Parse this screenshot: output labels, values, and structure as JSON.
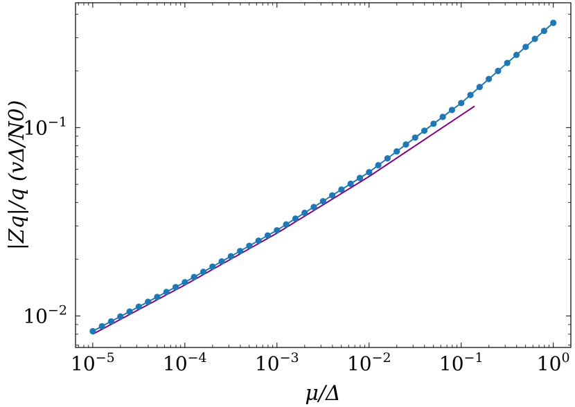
{
  "chart_data": {
    "type": "line",
    "xscale": "log",
    "yscale": "log",
    "xlim": [
      6.5e-06,
      1.55
    ],
    "ylim": [
      0.0068,
      0.46
    ],
    "xlabel": "μ/Δ",
    "ylabel": "|Zq|/q  (vΔ/N0)",
    "x_ticks": [
      {
        "value": 1e-05,
        "base": "10",
        "exp": "−5"
      },
      {
        "value": 0.0001,
        "base": "10",
        "exp": "−4"
      },
      {
        "value": 0.001,
        "base": "10",
        "exp": "−3"
      },
      {
        "value": 0.01,
        "base": "10",
        "exp": "−2"
      },
      {
        "value": 0.1,
        "base": "10",
        "exp": "−1"
      },
      {
        "value": 1,
        "base": "10",
        "exp": "0"
      }
    ],
    "y_ticks": [
      {
        "value": 0.01,
        "base": "10",
        "exp": "−2"
      },
      {
        "value": 0.1,
        "base": "10",
        "exp": "−1"
      }
    ],
    "grid": false,
    "legend": "none",
    "series": [
      {
        "kind": "markers-line",
        "color": "#1f77b4",
        "x_range": [
          1e-05,
          1
        ],
        "n_points": 51,
        "anchors": {
          "x": [
            1e-05,
            0.0001,
            0.001,
            0.01,
            0.1,
            1
          ],
          "y": [
            0.0083,
            0.0151,
            0.0285,
            0.058,
            0.135,
            0.36
          ]
        }
      },
      {
        "kind": "line",
        "color": "#800080",
        "anchors": {
          "x": [
            1e-05,
            0.0001,
            0.001,
            0.01,
            0.14
          ],
          "y": [
            0.008,
            0.0146,
            0.0275,
            0.055,
            0.13
          ]
        }
      }
    ]
  }
}
